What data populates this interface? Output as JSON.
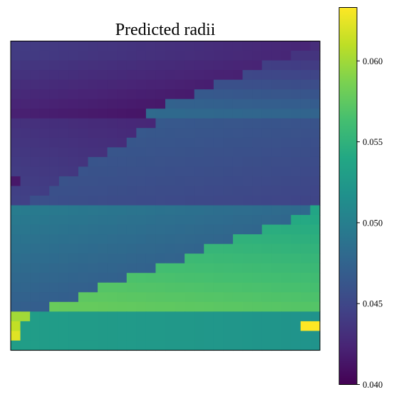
{
  "chart_data": {
    "type": "heatmap",
    "title": "Predicted radii",
    "xlabel": "",
    "ylabel": "",
    "rows": 32,
    "cols": 32,
    "colorbar": {
      "min": 0.04,
      "max": 0.0633,
      "ticks": [
        0.04,
        0.045,
        0.05,
        0.055,
        0.06
      ],
      "tick_labels": [
        "0.040",
        "0.045",
        "0.050",
        "0.055",
        "0.060"
      ],
      "colormap": "viridis"
    },
    "grid": false,
    "bands": [
      {
        "rows": [
          0,
          0
        ],
        "above": [
          0.043,
          0.0413
        ],
        "below": 0.044,
        "split_start": 30.5,
        "split_end": 30.5
      },
      {
        "rows": [
          1,
          7
        ],
        "above": [
          0.043,
          0.0416
        ],
        "below": [
          0.0445,
          0.0485
        ],
        "split_start": 28.5,
        "split_end": 13.5
      },
      {
        "rows": [
          8,
          16
        ],
        "above": [
          0.0428,
          0.0445
        ],
        "below": [
          0.047,
          0.0458
        ],
        "split_start": 14.5,
        "split_end": 1.5
      },
      {
        "rows": [
          17,
          27
        ],
        "above": [
          0.0485,
          0.047
        ],
        "below": [
          0.0548,
          0.058
        ],
        "split_start": 31.0,
        "split_end": 3.5
      },
      {
        "rows": [
          28,
          31
        ],
        "above": [
          0.06,
          0.0633
        ],
        "below": 0.053,
        "split_start": 1.5,
        "split_end": -0.5
      }
    ],
    "outliers": [
      {
        "row": 14,
        "col": 0,
        "value": 0.0415
      },
      {
        "row": 29,
        "col": 30,
        "value": 0.0633
      },
      {
        "row": 29,
        "col": 31,
        "value": 0.0633
      }
    ]
  }
}
